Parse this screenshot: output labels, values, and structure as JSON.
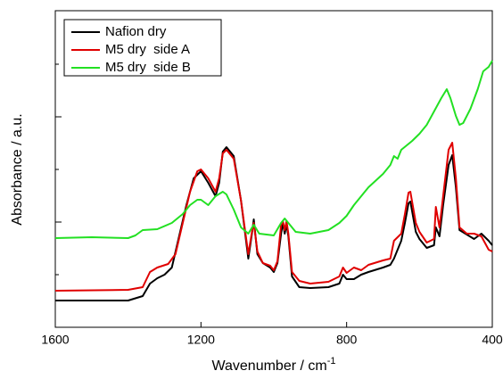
{
  "chart_data": {
    "type": "line",
    "xlabel": "Wavenumber / cm",
    "xlabel_superscript": "-1",
    "ylabel": "Absorbance / a.u.",
    "xlim": [
      1600,
      400
    ],
    "xticks": [
      1600,
      1200,
      800,
      400
    ],
    "ylim": [
      0,
      355
    ],
    "yticks": [
      59,
      118,
      177,
      236,
      295
    ],
    "legend": "upper left",
    "series": [
      {
        "name": "Nafion dry",
        "color": "#000000",
        "x": [
          1600,
          1400,
          1360,
          1340,
          1320,
          1300,
          1280,
          1260,
          1240,
          1220,
          1200,
          1180,
          1160,
          1150,
          1140,
          1130,
          1110,
          1090,
          1070,
          1060,
          1055,
          1045,
          1030,
          1010,
          1000,
          990,
          980,
          975,
          970,
          965,
          960,
          950,
          930,
          900,
          850,
          820,
          810,
          800,
          780,
          760,
          740,
          700,
          680,
          670,
          650,
          640,
          630,
          625,
          610,
          600,
          580,
          560,
          555,
          545,
          535,
          520,
          510,
          500,
          490,
          470,
          450,
          430,
          410,
          400
        ],
        "values": [
          30,
          30,
          35,
          49,
          55,
          59,
          67,
          102,
          137,
          167,
          175,
          162,
          147,
          162,
          197,
          202,
          192,
          142,
          77,
          105,
          121,
          82,
          72,
          67,
          62,
          72,
          105,
          117,
          105,
          115,
          102,
          57,
          45,
          44,
          45,
          49,
          59,
          54,
          54,
          59,
          62,
          67,
          70,
          77,
          97,
          117,
          139,
          141,
          107,
          99,
          89,
          92,
          112,
          102,
          137,
          182,
          193,
          157,
          109,
          104,
          99,
          105,
          97,
          92
        ]
      },
      {
        "name": "M5 dry  side A",
        "color": "#e00000",
        "x": [
          1600,
          1400,
          1360,
          1340,
          1320,
          1290,
          1270,
          1250,
          1230,
          1210,
          1200,
          1180,
          1160,
          1150,
          1140,
          1130,
          1110,
          1090,
          1070,
          1060,
          1055,
          1045,
          1030,
          1010,
          1000,
          990,
          980,
          975,
          970,
          965,
          960,
          950,
          930,
          900,
          850,
          820,
          810,
          800,
          780,
          760,
          740,
          700,
          680,
          670,
          650,
          640,
          630,
          625,
          610,
          600,
          580,
          560,
          555,
          545,
          535,
          520,
          510,
          500,
          490,
          470,
          450,
          430,
          410,
          400
        ],
        "values": [
          41,
          42,
          45,
          62,
          67,
          71,
          82,
          117,
          152,
          175,
          177,
          167,
          152,
          167,
          195,
          199,
          189,
          142,
          82,
          107,
          117,
          85,
          72,
          69,
          64,
          74,
          115,
          119,
          109,
          119,
          105,
          62,
          52,
          49,
          51,
          57,
          67,
          61,
          67,
          64,
          70,
          75,
          77,
          97,
          105,
          127,
          151,
          152,
          117,
          107,
          95,
          99,
          135,
          112,
          147,
          199,
          207,
          167,
          112,
          105,
          105,
          102,
          87,
          85
        ]
      },
      {
        "name": "M5 dry  side B",
        "color": "#22e022",
        "x": [
          1600,
          1500,
          1400,
          1380,
          1360,
          1320,
          1280,
          1250,
          1230,
          1210,
          1200,
          1180,
          1160,
          1140,
          1130,
          1110,
          1090,
          1070,
          1055,
          1040,
          1000,
          980,
          970,
          960,
          940,
          900,
          850,
          820,
          800,
          780,
          760,
          740,
          700,
          680,
          670,
          660,
          650,
          620,
          600,
          580,
          560,
          540,
          525,
          515,
          500,
          490,
          480,
          460,
          440,
          425,
          410,
          400
        ],
        "values": [
          100,
          101,
          100,
          103,
          109,
          110,
          117,
          127,
          137,
          143,
          143,
          137,
          147,
          152,
          149,
          132,
          112,
          105,
          115,
          105,
          103,
          117,
          122,
          117,
          107,
          105,
          109,
          117,
          125,
          137,
          147,
          157,
          172,
          182,
          192,
          189,
          199,
          209,
          217,
          227,
          242,
          257,
          267,
          257,
          237,
          227,
          229,
          245,
          267,
          287,
          292,
          299
        ]
      }
    ]
  }
}
